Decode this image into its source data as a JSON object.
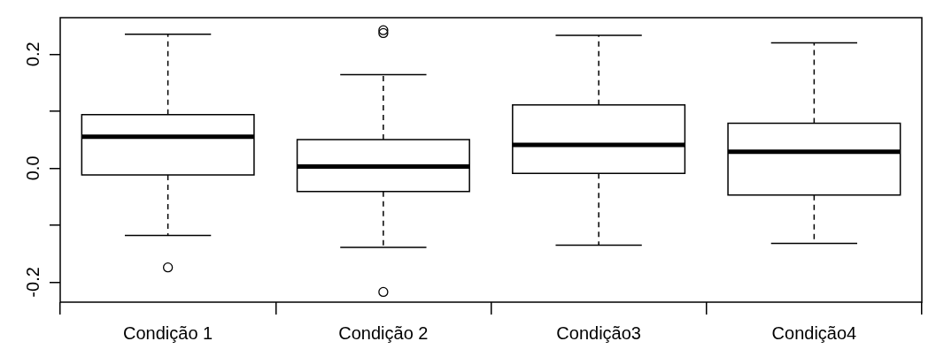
{
  "chart_data": {
    "type": "box",
    "categories": [
      "Condição 1",
      "Condição 2",
      "Condição3",
      "Condição4"
    ],
    "boxes": [
      {
        "low": -0.118,
        "q1": -0.012,
        "median": 0.055,
        "q3": 0.094,
        "high": 0.235,
        "outliers": [
          -0.174
        ]
      },
      {
        "low": -0.139,
        "q1": -0.041,
        "median": 0.003,
        "q3": 0.05,
        "high": 0.164,
        "outliers": [
          0.242,
          0.237,
          -0.217
        ]
      },
      {
        "low": -0.135,
        "q1": -0.009,
        "median": 0.041,
        "q3": 0.111,
        "high": 0.233
      },
      {
        "low": -0.132,
        "q1": -0.047,
        "median": 0.029,
        "q3": 0.079,
        "high": 0.22
      }
    ],
    "ylim": [
      -0.235,
      0.264
    ],
    "yticks": [
      {
        "value": -0.2,
        "label": "-0.2"
      },
      {
        "value": -0.1,
        "label": null
      },
      {
        "value": 0,
        "label": "0.0"
      },
      {
        "value": 0.1,
        "label": null
      },
      {
        "value": 0.2,
        "label": "0.2"
      }
    ],
    "grid": false,
    "legend": false
  }
}
